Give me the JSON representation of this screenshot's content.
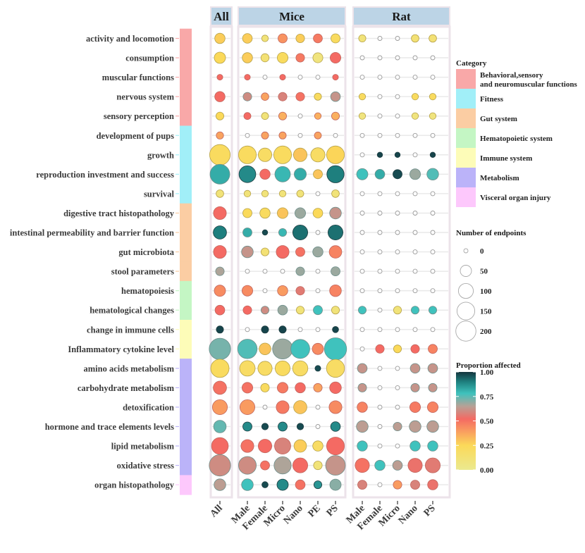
{
  "chart_data": {
    "type": "scatter",
    "subtype": "bubble-matrix",
    "title": "",
    "panels": [
      {
        "name": "All",
        "columns": [
          "All"
        ]
      },
      {
        "name": "Mice",
        "columns": [
          "Male",
          "Female",
          "Micro",
          "Nano",
          "PE",
          "PS"
        ]
      },
      {
        "name": "Rat",
        "columns": [
          "Male",
          "Female",
          "Micro",
          "Nano",
          "PS"
        ]
      }
    ],
    "rows": [
      {
        "label": "activity and locomotion",
        "category": "Behavioral,sensory and neuromuscular functions"
      },
      {
        "label": "consumption",
        "category": "Behavioral,sensory and neuromuscular functions"
      },
      {
        "label": "muscular functions",
        "category": "Behavioral,sensory and neuromuscular functions"
      },
      {
        "label": "nervous system",
        "category": "Behavioral,sensory and neuromuscular functions"
      },
      {
        "label": "sensory perception",
        "category": "Behavioral,sensory and neuromuscular functions"
      },
      {
        "label": "development of pups",
        "category": "Fitness"
      },
      {
        "label": "growth",
        "category": "Fitness"
      },
      {
        "label": "reproduction investment and success",
        "category": "Fitness"
      },
      {
        "label": "survival",
        "category": "Fitness"
      },
      {
        "label": "digestive tract histopathology",
        "category": "Gut system"
      },
      {
        "label": "intestinal permeability and barrier function",
        "category": "Gut system"
      },
      {
        "label": "gut microbiota",
        "category": "Gut system"
      },
      {
        "label": "stool parameters",
        "category": "Gut system"
      },
      {
        "label": "hematopoiesis",
        "category": "Hematopoietic system"
      },
      {
        "label": "hematological changes",
        "category": "Hematopoietic system"
      },
      {
        "label": "change in immune cells",
        "category": "Immune system"
      },
      {
        "label": "Inflammatory cytokine level",
        "category": "Immune system"
      },
      {
        "label": "amino acids metabolism",
        "category": "Metabolism"
      },
      {
        "label": "carbohydrate metabolism",
        "category": "Metabolism"
      },
      {
        "label": "detoxification",
        "category": "Metabolism"
      },
      {
        "label": "hormone and trace elements levels",
        "category": "Metabolism"
      },
      {
        "label": "lipid metabolism",
        "category": "Metabolism"
      },
      {
        "label": "oxidative stress",
        "category": "Metabolism"
      },
      {
        "label": "organ histopathology",
        "category": "Visceral organ injury"
      }
    ],
    "size_values_note": "Number of endpoints per cell [All | Mice: Male, Female, Micro, Nano, PE, PS | Rat: Male, Female, Micro, Nano, PS]",
    "n": [
      [
        40,
        35,
        12,
        30,
        25,
        28,
        30,
        15,
        0,
        0,
        18,
        18
      ],
      [
        50,
        40,
        22,
        45,
        25,
        38,
        45,
        0,
        0,
        0,
        0,
        0
      ],
      [
        8,
        8,
        0,
        8,
        0,
        0,
        8,
        0,
        0,
        0,
        0,
        0
      ],
      [
        40,
        25,
        18,
        25,
        25,
        15,
        35,
        12,
        0,
        0,
        12,
        12
      ],
      [
        20,
        14,
        14,
        20,
        0,
        12,
        20,
        12,
        0,
        0,
        12,
        12
      ],
      [
        16,
        0,
        15,
        15,
        0,
        14,
        0,
        0,
        0,
        0,
        0,
        0
      ],
      [
        210,
        150,
        80,
        150,
        80,
        90,
        150,
        0,
        6,
        6,
        0,
        6
      ],
      [
        190,
        130,
        40,
        110,
        60,
        30,
        140,
        50,
        35,
        30,
        45,
        55
      ],
      [
        18,
        12,
        12,
        12,
        14,
        0,
        18,
        0,
        0,
        0,
        0,
        0
      ],
      [
        70,
        30,
        40,
        45,
        45,
        35,
        55,
        0,
        0,
        0,
        0,
        0
      ],
      [
        75,
        30,
        6,
        20,
        100,
        0,
        100,
        0,
        0,
        0,
        0,
        0
      ],
      [
        70,
        55,
        20,
        70,
        30,
        40,
        65,
        0,
        0,
        0,
        0,
        0
      ],
      [
        25,
        0,
        0,
        0,
        25,
        0,
        30,
        0,
        0,
        0,
        0,
        0
      ],
      [
        50,
        45,
        0,
        40,
        25,
        0,
        55,
        0,
        0,
        0,
        0,
        0
      ],
      [
        35,
        25,
        20,
        35,
        20,
        30,
        20,
        20,
        0,
        20,
        20,
        20
      ],
      [
        15,
        0,
        15,
        15,
        0,
        0,
        10,
        0,
        0,
        0,
        0,
        0
      ],
      [
        230,
        185,
        55,
        200,
        175,
        50,
        250,
        0,
        25,
        20,
        25,
        30
      ],
      [
        160,
        110,
        90,
        100,
        105,
        8,
        155,
        35,
        0,
        0,
        35,
        35
      ],
      [
        75,
        45,
        25,
        45,
        40,
        25,
        55,
        25,
        0,
        0,
        25,
        25
      ],
      [
        100,
        100,
        0,
        70,
        75,
        0,
        70,
        40,
        0,
        0,
        45,
        45
      ],
      [
        65,
        30,
        12,
        30,
        12,
        0,
        35,
        55,
        0,
        25,
        55,
        55
      ],
      [
        130,
        70,
        80,
        120,
        65,
        40,
        150,
        40,
        0,
        0,
        40,
        40
      ],
      [
        230,
        150,
        30,
        140,
        100,
        25,
        190,
        90,
        40,
        35,
        90,
        100
      ],
      [
        55,
        55,
        10,
        50,
        35,
        20,
        50,
        30,
        0,
        25,
        30,
        40
      ]
    ],
    "proportion_values_note": "Proportion affected per cell (0..1), same column order; null when no endpoints",
    "p": [
      [
        0.28,
        0.28,
        0.1,
        0.42,
        0.28,
        0.48,
        0.22,
        0.1,
        null,
        null,
        0.12,
        0.12
      ],
      [
        0.25,
        0.28,
        0.12,
        0.22,
        0.48,
        0.08,
        0.52,
        null,
        null,
        null,
        null,
        null
      ],
      [
        0.52,
        0.52,
        null,
        0.52,
        null,
        null,
        0.52,
        null,
        null,
        null,
        null,
        null
      ],
      [
        0.52,
        0.6,
        0.38,
        0.58,
        0.5,
        0.22,
        0.62,
        0.22,
        null,
        null,
        0.22,
        0.22
      ],
      [
        0.25,
        0.52,
        0.1,
        0.35,
        null,
        0.35,
        0.35,
        0.08,
        null,
        null,
        0.08,
        0.08
      ],
      [
        0.38,
        null,
        0.38,
        0.38,
        null,
        0.38,
        null,
        null,
        null,
        null,
        null,
        null
      ],
      [
        0.22,
        0.22,
        0.2,
        0.22,
        0.3,
        0.2,
        0.26,
        null,
        0.98,
        0.98,
        null,
        0.98
      ],
      [
        0.82,
        0.88,
        0.52,
        0.8,
        0.82,
        0.3,
        0.9,
        0.78,
        0.82,
        0.97,
        0.68,
        0.76
      ],
      [
        0.1,
        0.1,
        0.1,
        0.1,
        0.1,
        null,
        0.1,
        null,
        null,
        null,
        null,
        null
      ],
      [
        0.52,
        0.24,
        0.22,
        0.3,
        0.68,
        0.25,
        0.62,
        null,
        null,
        null,
        null,
        null
      ],
      [
        0.9,
        0.82,
        0.97,
        0.8,
        0.92,
        null,
        0.92,
        null,
        null,
        null,
        null,
        null
      ],
      [
        0.52,
        0.62,
        0.12,
        0.52,
        0.5,
        0.68,
        0.46,
        null,
        null,
        null,
        null,
        null
      ],
      [
        0.66,
        null,
        null,
        null,
        0.68,
        null,
        0.68,
        null,
        null,
        null,
        null,
        null
      ],
      [
        0.44,
        0.44,
        null,
        0.4,
        0.56,
        null,
        0.46,
        null,
        null,
        null,
        null,
        null
      ],
      [
        0.52,
        0.52,
        0.6,
        0.68,
        0.1,
        0.78,
        0.1,
        0.78,
        null,
        0.1,
        0.78,
        0.78
      ],
      [
        0.98,
        null,
        0.98,
        0.98,
        null,
        null,
        0.98,
        null,
        null,
        null,
        null,
        null
      ],
      [
        0.72,
        0.76,
        0.3,
        0.68,
        0.78,
        0.44,
        0.78,
        null,
        0.52,
        0.25,
        0.52,
        0.46
      ],
      [
        0.22,
        0.2,
        0.2,
        0.22,
        0.2,
        0.97,
        0.2,
        0.62,
        null,
        null,
        0.62,
        0.62
      ],
      [
        0.5,
        0.5,
        0.22,
        0.48,
        0.52,
        0.38,
        0.52,
        0.62,
        null,
        null,
        0.62,
        0.62
      ],
      [
        0.4,
        0.4,
        null,
        0.48,
        0.3,
        null,
        0.44,
        0.46,
        null,
        null,
        0.48,
        0.46
      ],
      [
        0.74,
        0.88,
        0.97,
        0.88,
        0.97,
        null,
        0.88,
        0.64,
        null,
        0.64,
        0.64,
        0.64
      ],
      [
        0.52,
        0.5,
        0.52,
        0.58,
        0.28,
        0.2,
        0.52,
        0.78,
        null,
        null,
        0.78,
        0.78
      ],
      [
        0.6,
        0.6,
        0.5,
        0.66,
        0.52,
        0.1,
        0.62,
        0.5,
        0.78,
        0.64,
        0.54,
        0.56
      ],
      [
        0.64,
        0.78,
        0.97,
        0.88,
        0.5,
        0.86,
        0.7,
        0.58,
        null,
        0.4,
        0.58,
        0.54
      ]
    ],
    "legends": {
      "category": {
        "title": "Category",
        "items": [
          {
            "label": "Behavioral,sensory",
            "label2": "and neuromuscular functions",
            "color": "#f9a8a8"
          },
          {
            "label": "Fitness",
            "label2": "",
            "color": "#a1eff8"
          },
          {
            "label": "Gut system",
            "label2": "",
            "color": "#fbcda3"
          },
          {
            "label": "Hematopoietic system",
            "label2": "",
            "color": "#c4f6c4"
          },
          {
            "label": "Immune system",
            "label2": "",
            "color": "#fdfcb8"
          },
          {
            "label": "Metabolism",
            "label2": "",
            "color": "#bbb3f9"
          },
          {
            "label": "Visceral organ injury",
            "label2": "",
            "color": "#fdc8fc"
          }
        ]
      },
      "size": {
        "title": "Number of endpoints",
        "values": [
          0,
          50,
          100,
          150,
          200
        ],
        "labels": [
          "0",
          "50",
          "100",
          "150",
          "200"
        ]
      },
      "color": {
        "title": "Proportion affected",
        "range": [
          0,
          1
        ],
        "ticks": [
          "1.00",
          "0.75",
          "0.50",
          "0.25",
          "0.00"
        ],
        "tick_values": [
          1.0,
          0.75,
          0.5,
          0.25,
          0.0
        ],
        "stops": [
          {
            "v": 0.0,
            "color": "#ebe98f"
          },
          {
            "v": 0.25,
            "color": "#fbd959"
          },
          {
            "v": 0.4,
            "color": "#f99b60"
          },
          {
            "v": 0.52,
            "color": "#f46a63"
          },
          {
            "v": 0.65,
            "color": "#b7a196"
          },
          {
            "v": 0.78,
            "color": "#3fc2bd"
          },
          {
            "v": 0.9,
            "color": "#1e7f7e"
          },
          {
            "v": 1.0,
            "color": "#14353e"
          }
        ]
      }
    },
    "panel_header_color": "#bcd4e6",
    "panel_border_color": "#ece3ea"
  }
}
